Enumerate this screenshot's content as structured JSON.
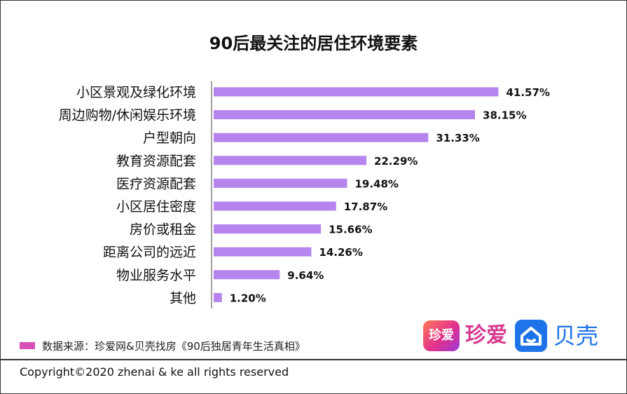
{
  "chart_data": {
    "type": "bar",
    "orientation": "horizontal",
    "title": "90后最关注的居住环境要素",
    "categories": [
      "小区景观及绿化环境",
      "周边购物/休闲娱乐环境",
      "户型朝向",
      "教育资源配套",
      "医疗资源配套",
      "小区居住密度",
      "房价或租金",
      "距离公司的远近",
      "物业服务水平",
      "其他"
    ],
    "values": [
      41.57,
      38.15,
      31.33,
      22.29,
      19.48,
      17.87,
      15.66,
      14.26,
      9.64,
      1.2
    ],
    "value_labels": [
      "41.57%",
      "38.15%",
      "31.33%",
      "22.29%",
      "19.48%",
      "17.87%",
      "15.66%",
      "14.26%",
      "9.64%",
      "1.20%"
    ],
    "unit": "%",
    "xlim": [
      0,
      45
    ],
    "grid": false,
    "bar_color": "#b584ec"
  },
  "source": {
    "text": "数据来源：珍爱网&贝壳找房《90后独居青年生活真相》",
    "swatch_color": "#d94fb8"
  },
  "logos": {
    "zhenai_box": "珍爱",
    "zhenai_text": "珍爱",
    "ke_icon": "home-icon",
    "ke_text": "贝壳"
  },
  "footer": {
    "copyright": "Copyright©2020 zhenai & ke all rights reserved"
  }
}
